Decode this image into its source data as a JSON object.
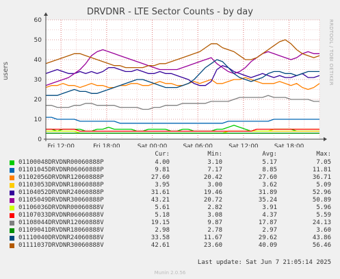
{
  "title": "DRVDNR - LTE Sector Counts - by day",
  "watermark": "RRDTOOL / TOBI OETIKER",
  "footer": "Munin 2.0.56",
  "last_update": "Last update: Sat Jun  7 21:05:14 2025",
  "legend_headers": {
    "cur": "Cur:",
    "min": "Min:",
    "avg": "Avg:",
    "max": "Max:"
  },
  "chart_data": {
    "type": "line",
    "title": "DRVDNR - LTE Sector Counts - by day",
    "ylabel": "users",
    "ylim": [
      0,
      60
    ],
    "yticks": [
      "0",
      "10",
      "20",
      "30",
      "40",
      "50",
      "60"
    ],
    "xlim": [
      "Fri 10:00",
      "Sat 22:00"
    ],
    "xticks": [
      "Fri 12:00",
      "Fri 18:00",
      "Sat 00:00",
      "Sat 06:00",
      "Sat 12:00",
      "Sat 18:00"
    ],
    "grid": true,
    "legend_position": "bottom",
    "series": [
      {
        "name": "01100048DRVDNR00060888P",
        "color": "#00cc00",
        "cur": "4.00",
        "min": "3.10",
        "avg": "5.17",
        "max": "7.05",
        "values": [
          5,
          5,
          4,
          5,
          5,
          5,
          5,
          4,
          4,
          5,
          5,
          6,
          5,
          5,
          5,
          5,
          4,
          4,
          5,
          5,
          5,
          5,
          4,
          4,
          5,
          5,
          4,
          4,
          4,
          4,
          5,
          5,
          6,
          7,
          6,
          5,
          4,
          4,
          4,
          4,
          5,
          5,
          5,
          5,
          4,
          4,
          4,
          4,
          4
        ]
      },
      {
        "name": "01101045DRVDNR06060888P",
        "color": "#0066b3",
        "cur": "9.81",
        "min": "7.17",
        "avg": "8.85",
        "max": "11.81",
        "values": [
          11,
          11,
          10,
          10,
          10,
          10,
          9,
          9,
          9,
          9,
          9,
          9,
          9,
          8,
          8,
          8,
          8,
          8,
          8,
          8,
          8,
          8,
          8,
          8,
          8,
          8,
          8,
          8,
          8,
          8,
          8,
          8,
          9,
          9,
          9,
          9,
          9,
          9,
          9,
          9,
          10,
          10,
          10,
          10,
          10,
          10,
          10,
          10,
          10
        ]
      },
      {
        "name": "01102056DRVDNR12060888P",
        "color": "#ff8000",
        "cur": "27.60",
        "min": "20.42",
        "avg": "27.60",
        "max": "36.71",
        "values": [
          26,
          27,
          27,
          28,
          27,
          27,
          26,
          27,
          28,
          27,
          27,
          26,
          26,
          27,
          27,
          28,
          28,
          27,
          27,
          28,
          29,
          28,
          28,
          27,
          27,
          28,
          29,
          28,
          29,
          30,
          28,
          28,
          29,
          30,
          30,
          31,
          30,
          29,
          28,
          28,
          28,
          29,
          28,
          27,
          28,
          26,
          25,
          26,
          28
        ]
      },
      {
        "name": "01103053DRVDNR18060888P",
        "color": "#ffcc00",
        "cur": "3.95",
        "min": "3.00",
        "avg": "3.62",
        "max": "5.09",
        "values": [
          4,
          4,
          4,
          4,
          4,
          4,
          3,
          3,
          3,
          3,
          3,
          3,
          3,
          3,
          3,
          3,
          3,
          3,
          3,
          3,
          3,
          3,
          3,
          3,
          3,
          3,
          3,
          3,
          3,
          3,
          3,
          3,
          4,
          4,
          4,
          4,
          4,
          4,
          4,
          4,
          4,
          4,
          4,
          4,
          4,
          4,
          4,
          4,
          4
        ]
      },
      {
        "name": "01104052DRVDNR24060888P",
        "color": "#330099",
        "cur": "31.61",
        "min": "19.46",
        "avg": "31.89",
        "max": "52.96",
        "values": [
          33,
          34,
          35,
          34,
          33,
          33,
          34,
          33,
          34,
          33,
          34,
          36,
          36,
          35,
          34,
          34,
          35,
          34,
          33,
          33,
          34,
          33,
          33,
          32,
          31,
          30,
          28,
          27,
          27,
          29,
          35,
          37,
          36,
          34,
          33,
          32,
          31,
          32,
          33,
          32,
          31,
          32,
          31,
          31,
          32,
          33,
          31,
          31,
          32
        ]
      },
      {
        "name": "01105049DRVDNR30060888P",
        "color": "#990099",
        "cur": "43.21",
        "min": "20.72",
        "avg": "35.24",
        "max": "50.89",
        "values": [
          27,
          28,
          29,
          30,
          31,
          33,
          35,
          38,
          42,
          44,
          45,
          44,
          43,
          42,
          41,
          40,
          39,
          38,
          37,
          36,
          35,
          35,
          35,
          35,
          36,
          37,
          38,
          39,
          40,
          41,
          38,
          36,
          34,
          33,
          34,
          36,
          39,
          41,
          43,
          44,
          43,
          42,
          41,
          40,
          41,
          43,
          44,
          43,
          43
        ]
      },
      {
        "name": "01106036DRVDNR00060888V",
        "color": "#ccff00",
        "cur": "5.61",
        "min": "2.82",
        "avg": "3.91",
        "max": "5.96",
        "values": [
          4,
          4,
          4,
          4,
          4,
          4,
          3,
          3,
          3,
          3,
          3,
          3,
          3,
          3,
          3,
          3,
          3,
          3,
          3,
          3,
          3,
          3,
          3,
          3,
          3,
          3,
          3,
          3,
          3,
          3,
          3,
          3,
          4,
          4,
          4,
          4,
          4,
          4,
          4,
          4,
          5,
          5,
          5,
          5,
          5,
          5,
          5,
          5,
          5
        ]
      },
      {
        "name": "01107033DRVDNR06060888V",
        "color": "#ff0000",
        "cur": "5.18",
        "min": "3.08",
        "avg": "4.37",
        "max": "5.59",
        "values": [
          5,
          5,
          5,
          5,
          5,
          5,
          4,
          4,
          4,
          4,
          4,
          4,
          4,
          4,
          4,
          4,
          4,
          4,
          4,
          4,
          4,
          4,
          4,
          4,
          4,
          4,
          4,
          4,
          4,
          4,
          4,
          4,
          4,
          4,
          4,
          4,
          4,
          5,
          5,
          5,
          5,
          5,
          5,
          5,
          5,
          5,
          5,
          5,
          5
        ]
      },
      {
        "name": "01108044DRVDNR12060888V",
        "color": "#808080",
        "cur": "19.15",
        "min": "9.87",
        "avg": "17.87",
        "max": "24.13",
        "values": [
          17,
          17,
          16,
          16,
          16,
          17,
          17,
          18,
          18,
          17,
          17,
          17,
          17,
          16,
          16,
          16,
          16,
          15,
          15,
          16,
          16,
          17,
          17,
          17,
          18,
          18,
          18,
          18,
          18,
          19,
          19,
          19,
          19,
          20,
          21,
          21,
          21,
          21,
          21,
          22,
          21,
          21,
          21,
          20,
          20,
          20,
          20,
          19,
          19
        ]
      },
      {
        "name": "01109041DRVDNR18060888V",
        "color": "#008f00",
        "cur": "2.98",
        "min": "2.78",
        "avg": "2.97",
        "max": "3.60",
        "values": [
          3,
          3,
          3,
          3,
          3,
          3,
          3,
          3,
          3,
          3,
          3,
          3,
          3,
          3,
          3,
          3,
          3,
          3,
          3,
          3,
          3,
          3,
          3,
          3,
          3,
          3,
          3,
          3,
          3,
          3,
          3,
          3,
          3,
          3,
          3,
          3,
          3,
          3,
          3,
          3,
          3,
          3,
          3,
          3,
          3,
          3,
          3,
          3,
          3
        ]
      },
      {
        "name": "01110040DRVDNR24060888V",
        "color": "#00487d",
        "cur": "33.58",
        "min": "11.67",
        "avg": "29.62",
        "max": "43.86",
        "values": [
          22,
          22,
          22,
          23,
          24,
          25,
          24,
          24,
          23,
          23,
          24,
          25,
          26,
          27,
          28,
          29,
          30,
          30,
          29,
          28,
          27,
          26,
          26,
          26,
          27,
          28,
          30,
          33,
          36,
          38,
          40,
          39,
          36,
          33,
          31,
          30,
          29,
          30,
          31,
          33,
          34,
          34,
          33,
          33,
          32,
          33,
          34,
          34,
          34
        ]
      },
      {
        "name": "01111037DRVDNR30060888V",
        "color": "#b35a00",
        "cur": "42.61",
        "min": "23.60",
        "avg": "40.09",
        "max": "56.46",
        "values": [
          38,
          39,
          40,
          41,
          42,
          43,
          43,
          42,
          41,
          40,
          39,
          38,
          37,
          37,
          36,
          36,
          36,
          36,
          37,
          37,
          38,
          38,
          39,
          40,
          41,
          42,
          43,
          44,
          46,
          48,
          48,
          46,
          45,
          44,
          42,
          40,
          40,
          41,
          43,
          45,
          47,
          49,
          50,
          48,
          45,
          43,
          42,
          41,
          42
        ]
      }
    ]
  }
}
